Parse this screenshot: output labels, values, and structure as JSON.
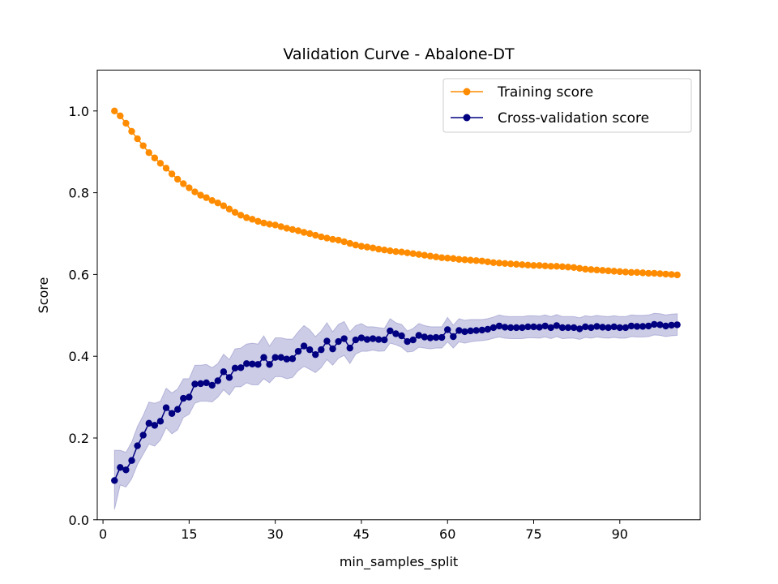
{
  "chart_data": {
    "type": "line",
    "title": "Validation Curve - Abalone-DT",
    "xlabel": "min_samples_split",
    "ylabel": "Score",
    "xlim": [
      -1,
      104
    ],
    "ylim": [
      0.0,
      1.1
    ],
    "xticks": [
      0,
      15,
      30,
      45,
      60,
      75,
      90
    ],
    "yticks": [
      0.0,
      0.2,
      0.4,
      0.6,
      0.8,
      1.0
    ],
    "xtick_labels": [
      "0",
      "15",
      "30",
      "45",
      "60",
      "75",
      "90"
    ],
    "ytick_labels": [
      "0.0",
      "0.2",
      "0.4",
      "0.6",
      "0.8",
      "1.0"
    ],
    "grid": false,
    "legend_position": "top-right",
    "x": [
      2,
      3,
      4,
      5,
      6,
      7,
      8,
      9,
      10,
      11,
      12,
      13,
      14,
      15,
      16,
      17,
      18,
      19,
      20,
      21,
      22,
      23,
      24,
      25,
      26,
      27,
      28,
      29,
      30,
      31,
      32,
      33,
      34,
      35,
      36,
      37,
      38,
      39,
      40,
      41,
      42,
      43,
      44,
      45,
      46,
      47,
      48,
      49,
      50,
      51,
      52,
      53,
      54,
      55,
      56,
      57,
      58,
      59,
      60,
      61,
      62,
      63,
      64,
      65,
      66,
      67,
      68,
      69,
      70,
      71,
      72,
      73,
      74,
      75,
      76,
      77,
      78,
      79,
      80,
      81,
      82,
      83,
      84,
      85,
      86,
      87,
      88,
      89,
      90,
      91,
      92,
      93,
      94,
      95,
      96,
      97,
      98,
      99,
      100
    ],
    "series": [
      {
        "name": "Training score",
        "color": "#ff8c00",
        "values": [
          1.0,
          0.988,
          0.97,
          0.95,
          0.932,
          0.915,
          0.898,
          0.885,
          0.872,
          0.86,
          0.846,
          0.833,
          0.822,
          0.812,
          0.802,
          0.794,
          0.788,
          0.781,
          0.775,
          0.768,
          0.76,
          0.752,
          0.745,
          0.739,
          0.735,
          0.73,
          0.726,
          0.723,
          0.721,
          0.717,
          0.713,
          0.71,
          0.707,
          0.703,
          0.7,
          0.696,
          0.692,
          0.689,
          0.686,
          0.684,
          0.68,
          0.676,
          0.672,
          0.669,
          0.667,
          0.665,
          0.662,
          0.66,
          0.658,
          0.656,
          0.655,
          0.653,
          0.651,
          0.649,
          0.647,
          0.645,
          0.643,
          0.641,
          0.64,
          0.639,
          0.637,
          0.636,
          0.635,
          0.634,
          0.633,
          0.631,
          0.629,
          0.628,
          0.627,
          0.626,
          0.625,
          0.624,
          0.623,
          0.622,
          0.622,
          0.621,
          0.62,
          0.62,
          0.619,
          0.618,
          0.617,
          0.615,
          0.613,
          0.612,
          0.611,
          0.61,
          0.609,
          0.608,
          0.607,
          0.606,
          0.605,
          0.605,
          0.604,
          0.603,
          0.603,
          0.602,
          0.601,
          0.6,
          0.599
        ]
      },
      {
        "name": "Cross-validation score",
        "color": "#000080",
        "band_color": "#000080",
        "values": [
          0.096,
          0.128,
          0.122,
          0.145,
          0.181,
          0.207,
          0.236,
          0.231,
          0.241,
          0.274,
          0.26,
          0.27,
          0.297,
          0.3,
          0.332,
          0.333,
          0.335,
          0.329,
          0.34,
          0.362,
          0.348,
          0.371,
          0.372,
          0.382,
          0.381,
          0.38,
          0.397,
          0.38,
          0.397,
          0.397,
          0.393,
          0.394,
          0.412,
          0.425,
          0.416,
          0.404,
          0.416,
          0.437,
          0.418,
          0.436,
          0.443,
          0.42,
          0.44,
          0.445,
          0.441,
          0.443,
          0.441,
          0.44,
          0.462,
          0.455,
          0.45,
          0.436,
          0.44,
          0.451,
          0.447,
          0.445,
          0.446,
          0.446,
          0.465,
          0.448,
          0.463,
          0.46,
          0.462,
          0.463,
          0.464,
          0.466,
          0.47,
          0.474,
          0.471,
          0.47,
          0.47,
          0.47,
          0.472,
          0.472,
          0.471,
          0.474,
          0.47,
          0.475,
          0.47,
          0.47,
          0.47,
          0.467,
          0.472,
          0.47,
          0.473,
          0.471,
          0.47,
          0.472,
          0.47,
          0.47,
          0.474,
          0.473,
          0.473,
          0.474,
          0.478,
          0.477,
          0.474,
          0.476,
          0.477
        ],
        "lower": [
          0.025,
          0.085,
          0.08,
          0.1,
          0.135,
          0.16,
          0.185,
          0.18,
          0.195,
          0.225,
          0.21,
          0.22,
          0.25,
          0.258,
          0.285,
          0.29,
          0.29,
          0.288,
          0.3,
          0.318,
          0.305,
          0.325,
          0.325,
          0.335,
          0.33,
          0.33,
          0.345,
          0.335,
          0.35,
          0.35,
          0.345,
          0.348,
          0.365,
          0.375,
          0.368,
          0.36,
          0.372,
          0.392,
          0.378,
          0.395,
          0.402,
          0.382,
          0.405,
          0.412,
          0.412,
          0.415,
          0.412,
          0.413,
          0.432,
          0.428,
          0.422,
          0.41,
          0.412,
          0.422,
          0.42,
          0.418,
          0.42,
          0.42,
          0.435,
          0.42,
          0.435,
          0.432,
          0.435,
          0.437,
          0.438,
          0.44,
          0.444,
          0.447,
          0.444,
          0.443,
          0.443,
          0.443,
          0.445,
          0.445,
          0.444,
          0.447,
          0.443,
          0.448,
          0.443,
          0.444,
          0.444,
          0.441,
          0.446,
          0.444,
          0.447,
          0.445,
          0.444,
          0.446,
          0.444,
          0.444,
          0.448,
          0.447,
          0.447,
          0.448,
          0.452,
          0.451,
          0.448,
          0.45,
          0.451
        ],
        "upper": [
          0.17,
          0.17,
          0.165,
          0.19,
          0.228,
          0.255,
          0.288,
          0.285,
          0.29,
          0.322,
          0.31,
          0.32,
          0.345,
          0.345,
          0.378,
          0.378,
          0.38,
          0.372,
          0.382,
          0.405,
          0.392,
          0.418,
          0.42,
          0.43,
          0.432,
          0.43,
          0.45,
          0.425,
          0.445,
          0.445,
          0.442,
          0.442,
          0.46,
          0.475,
          0.465,
          0.448,
          0.462,
          0.482,
          0.46,
          0.478,
          0.485,
          0.46,
          0.475,
          0.48,
          0.472,
          0.472,
          0.47,
          0.468,
          0.492,
          0.482,
          0.478,
          0.462,
          0.468,
          0.48,
          0.475,
          0.472,
          0.472,
          0.472,
          0.495,
          0.476,
          0.492,
          0.488,
          0.49,
          0.49,
          0.49,
          0.492,
          0.496,
          0.501,
          0.498,
          0.497,
          0.497,
          0.497,
          0.499,
          0.499,
          0.498,
          0.501,
          0.497,
          0.502,
          0.497,
          0.497,
          0.497,
          0.494,
          0.499,
          0.497,
          0.5,
          0.498,
          0.497,
          0.499,
          0.497,
          0.497,
          0.501,
          0.5,
          0.5,
          0.501,
          0.505,
          0.504,
          0.501,
          0.503,
          0.504
        ]
      }
    ]
  }
}
